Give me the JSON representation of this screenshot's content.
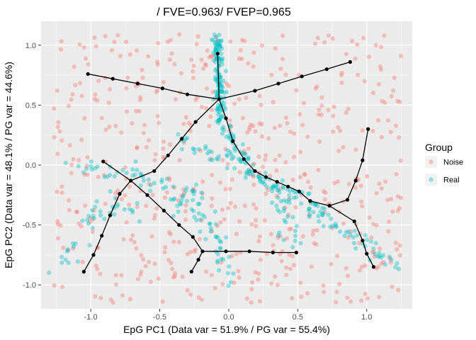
{
  "chart_data": {
    "type": "scatter",
    "title": "/ FVE=0.963/ FVEP=0.965",
    "xlabel": "EpG PC1 (Data var = 51.9% / PG var = 55.4%)",
    "ylabel": "EpG PC2 (Data var = 48.1% / PG var = 44.6%)",
    "xlim": [
      -1.36,
      1.33
    ],
    "ylim": [
      -1.2,
      1.2
    ],
    "x_ticks": [
      -1.0,
      -0.5,
      0.0,
      0.5,
      1.0
    ],
    "y_ticks": [
      -1.0,
      -0.5,
      0.0,
      0.5,
      1.0
    ],
    "x_tick_labels": [
      "-1.0",
      "-0.5",
      "0.0",
      "0.5",
      "1.0"
    ],
    "y_tick_labels": [
      "-1.0",
      "-0.5",
      "0.0",
      "0.5",
      "1.0"
    ],
    "grid": true,
    "background": "#ebebeb",
    "legend": {
      "title": "Group",
      "placement": "right",
      "entries": [
        {
          "label": "Noise",
          "color": "#F8766D"
        },
        {
          "label": "Real",
          "color": "#00BFC4"
        }
      ]
    },
    "series": [
      {
        "name": "Noise",
        "color": "#F8766D",
        "distribution": "uniform",
        "x_range": [
          -1.27,
          1.25
        ],
        "y_range": [
          -1.15,
          1.1
        ],
        "count": 560
      },
      {
        "name": "Real",
        "color": "#00BFC4",
        "distribution": "branches",
        "segments": [
          {
            "from": [
              -0.08,
              1.07
            ],
            "to": [
              -0.06,
              0.38
            ],
            "count": 120,
            "spread": 0.02
          },
          {
            "from": [
              -0.06,
              0.38
            ],
            "to": [
              0.13,
              -0.05
            ],
            "count": 45,
            "spread": 0.03
          },
          {
            "from": [
              0.13,
              -0.05
            ],
            "to": [
              0.52,
              -0.28
            ],
            "count": 45,
            "spread": 0.035
          },
          {
            "from": [
              0.52,
              -0.28
            ],
            "to": [
              1.25,
              -0.88
            ],
            "count": 60,
            "spread": 0.04
          },
          {
            "from": [
              0.42,
              -0.25
            ],
            "to": [
              0.42,
              -0.65
            ],
            "count": 25,
            "spread": 0.04
          },
          {
            "from": [
              -0.3,
              0.2
            ],
            "to": [
              0.0,
              0.02
            ],
            "count": 25,
            "spread": 0.04
          },
          {
            "from": [
              -1.2,
              0.0
            ],
            "to": [
              -0.7,
              -0.08
            ],
            "count": 18,
            "spread": 0.03
          },
          {
            "from": [
              -0.7,
              -0.08
            ],
            "to": [
              -0.3,
              -0.2
            ],
            "count": 20,
            "spread": 0.04
          },
          {
            "from": [
              -0.3,
              -0.2
            ],
            "to": [
              -0.1,
              -0.58
            ],
            "count": 25,
            "spread": 0.04
          },
          {
            "from": [
              -0.1,
              -0.58
            ],
            "to": [
              0.02,
              -1.03
            ],
            "count": 20,
            "spread": 0.03
          },
          {
            "from": [
              -0.9,
              -0.35
            ],
            "to": [
              -1.25,
              -0.88
            ],
            "count": 25,
            "spread": 0.04
          },
          {
            "from": [
              -0.9,
              -0.35
            ],
            "to": [
              -0.6,
              -0.42
            ],
            "count": 15,
            "spread": 0.04
          },
          {
            "from": [
              -0.38,
              -0.38
            ],
            "to": [
              -0.22,
              -0.12
            ],
            "count": 15,
            "spread": 0.04
          }
        ]
      }
    ],
    "graph": {
      "color": "#000000",
      "nodes": [
        [
          -0.07,
          0.55
        ],
        [
          -0.08,
          0.93
        ],
        [
          -1.02,
          0.76
        ],
        [
          -0.84,
          0.72
        ],
        [
          -0.66,
          0.68
        ],
        [
          -0.48,
          0.64
        ],
        [
          -0.3,
          0.59
        ],
        [
          0.19,
          0.62
        ],
        [
          0.36,
          0.68
        ],
        [
          0.53,
          0.74
        ],
        [
          0.71,
          0.8
        ],
        [
          0.88,
          0.86
        ],
        [
          -0.24,
          0.36
        ],
        [
          -0.34,
          0.22
        ],
        [
          -0.44,
          0.08
        ],
        [
          -0.54,
          -0.05
        ],
        [
          -0.71,
          -0.13
        ],
        [
          -0.91,
          0.03
        ],
        [
          -0.79,
          -0.24
        ],
        [
          -0.86,
          -0.42
        ],
        [
          -0.92,
          -0.59
        ],
        [
          -0.98,
          -0.75
        ],
        [
          -1.05,
          -0.89
        ],
        [
          -0.59,
          -0.25
        ],
        [
          -0.47,
          -0.38
        ],
        [
          -0.36,
          -0.5
        ],
        [
          -0.26,
          -0.6
        ],
        [
          -0.19,
          -0.72
        ],
        [
          -0.22,
          -0.79
        ],
        [
          -0.27,
          -0.89
        ],
        [
          -0.02,
          -0.72
        ],
        [
          0.15,
          -0.72
        ],
        [
          0.32,
          -0.73
        ],
        [
          0.49,
          -0.73
        ],
        [
          -0.02,
          0.39
        ],
        [
          0.03,
          0.2
        ],
        [
          0.11,
          0.05
        ],
        [
          0.19,
          -0.05
        ],
        [
          0.27,
          -0.1
        ],
        [
          0.35,
          -0.14
        ],
        [
          0.43,
          -0.18
        ],
        [
          0.51,
          -0.22
        ],
        [
          0.59,
          -0.3
        ],
        [
          0.73,
          -0.34
        ],
        [
          0.86,
          -0.29
        ],
        [
          0.92,
          -0.13
        ],
        [
          0.97,
          0.04
        ],
        [
          1.01,
          0.3
        ],
        [
          0.91,
          -0.47
        ],
        [
          0.97,
          -0.63
        ],
        [
          1.0,
          -0.74
        ],
        [
          1.05,
          -0.85
        ]
      ],
      "edges": [
        [
          0,
          1
        ],
        [
          0,
          6
        ],
        [
          6,
          5
        ],
        [
          5,
          4
        ],
        [
          4,
          3
        ],
        [
          3,
          2
        ],
        [
          0,
          7
        ],
        [
          7,
          8
        ],
        [
          8,
          9
        ],
        [
          9,
          10
        ],
        [
          10,
          11
        ],
        [
          0,
          12
        ],
        [
          12,
          13
        ],
        [
          13,
          14
        ],
        [
          14,
          15
        ],
        [
          15,
          16
        ],
        [
          16,
          17
        ],
        [
          16,
          18
        ],
        [
          18,
          19
        ],
        [
          19,
          20
        ],
        [
          20,
          21
        ],
        [
          21,
          22
        ],
        [
          16,
          23
        ],
        [
          23,
          24
        ],
        [
          24,
          25
        ],
        [
          25,
          26
        ],
        [
          26,
          27
        ],
        [
          27,
          28
        ],
        [
          28,
          29
        ],
        [
          27,
          30
        ],
        [
          30,
          31
        ],
        [
          31,
          32
        ],
        [
          32,
          33
        ],
        [
          0,
          34
        ],
        [
          34,
          35
        ],
        [
          35,
          36
        ],
        [
          36,
          37
        ],
        [
          37,
          38
        ],
        [
          38,
          39
        ],
        [
          39,
          40
        ],
        [
          40,
          41
        ],
        [
          41,
          42
        ],
        [
          42,
          43
        ],
        [
          43,
          44
        ],
        [
          44,
          45
        ],
        [
          45,
          46
        ],
        [
          46,
          47
        ],
        [
          43,
          48
        ],
        [
          48,
          49
        ],
        [
          49,
          50
        ],
        [
          50,
          51
        ]
      ]
    }
  }
}
